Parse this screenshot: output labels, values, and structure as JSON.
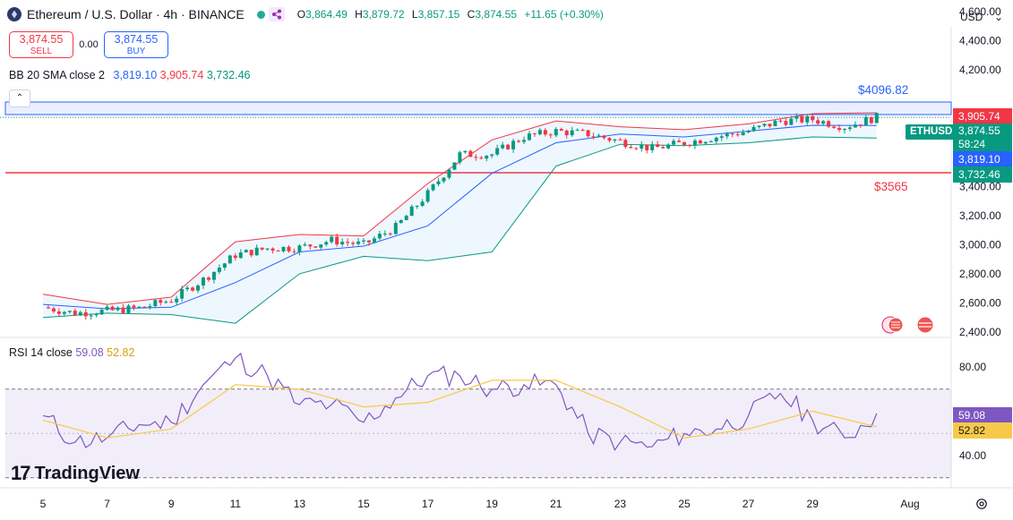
{
  "header": {
    "title": "Ethereum / U.S. Dollar · 4h · BINANCE",
    "ohlc": {
      "o_label": "O",
      "o": "3,864.49",
      "h_label": "H",
      "h": "3,879.72",
      "l_label": "L",
      "l": "3,857.15",
      "c_label": "C",
      "c": "3,874.55",
      "change": "+11.65 (+0.30%)"
    }
  },
  "trade": {
    "sell_price": "3,874.55",
    "sell_label": "SELL",
    "spread": "0.00",
    "buy_price": "3,874.55",
    "buy_label": "BUY"
  },
  "indicators": {
    "bb": {
      "name": "BB 20 SMA close 2",
      "basis": "3,819.10",
      "upper": "3,905.74",
      "lower": "3,732.46"
    },
    "rsi": {
      "name": "RSI 14 close",
      "rsi": "59.08",
      "ma": "52.82"
    }
  },
  "currency": {
    "label": "USD"
  },
  "price_labels": {
    "upper": "3,905.74",
    "last": "3,874.55",
    "countdown": "58:24",
    "basis": "3,819.10",
    "lower": "3,732.46",
    "symbol": "ETHUSD",
    "rsi": "59.08",
    "rsi_ma": "52.82"
  },
  "annotations": {
    "resistance": "$4096.82",
    "support": "$3565"
  },
  "colors": {
    "up": "#089981",
    "down": "#f23645",
    "basis": "#2962ff",
    "upper_band": "#f23645",
    "lower_band": "#089981",
    "rsi": "#7e57c2",
    "rsi_ma": "#f7c948",
    "resistance": "#2962ff",
    "support": "#f23645"
  },
  "logo": {
    "text": "TradingView"
  },
  "chart_data": {
    "type": "candlestick",
    "price_axis": {
      "ticks": [
        "4,600.00",
        "4,400.00",
        "4,200.00",
        "3,400.00",
        "3,200.00",
        "3,000.00",
        "2,800.00",
        "2,600.00",
        "2,400.00"
      ],
      "tick_values": [
        4600,
        4400,
        4200,
        3400,
        3200,
        3000,
        2800,
        2600,
        2400
      ]
    },
    "rsi_axis": {
      "ticks": [
        "80.00",
        "40.00"
      ],
      "tick_values": [
        80,
        40
      ],
      "band": [
        30,
        70
      ]
    },
    "x_axis": {
      "ticks": [
        "5",
        "7",
        "9",
        "11",
        "13",
        "15",
        "17",
        "19",
        "21",
        "23",
        "25",
        "27",
        "29",
        "Aug"
      ]
    },
    "levels": {
      "resistance": 4096.82,
      "support": 3565,
      "last": 3874.55
    },
    "price_path": [
      [
        "5",
        2570
      ],
      [
        "6",
        2530
      ],
      [
        "7",
        2545
      ],
      [
        "8",
        2565
      ],
      [
        "9",
        2620
      ],
      [
        "10",
        2760
      ],
      [
        "11",
        2930
      ],
      [
        "12",
        2975
      ],
      [
        "13",
        2980
      ],
      [
        "14",
        3030
      ],
      [
        "15",
        3000
      ],
      [
        "16",
        3120
      ],
      [
        "17",
        3350
      ],
      [
        "18",
        3620
      ],
      [
        "19",
        3620
      ],
      [
        "20",
        3740
      ],
      [
        "21",
        3780
      ],
      [
        "22",
        3760
      ],
      [
        "23",
        3710
      ],
      [
        "24",
        3660
      ],
      [
        "25",
        3700
      ],
      [
        "26",
        3740
      ],
      [
        "27",
        3780
      ],
      [
        "28",
        3850
      ],
      [
        "29",
        3860
      ],
      [
        "30",
        3810
      ],
      [
        "31",
        3875
      ]
    ],
    "bb_upper_path": [
      [
        "5",
        2660
      ],
      [
        "7",
        2590
      ],
      [
        "9",
        2640
      ],
      [
        "11",
        3020
      ],
      [
        "13",
        3070
      ],
      [
        "15",
        3060
      ],
      [
        "17",
        3420
      ],
      [
        "19",
        3720
      ],
      [
        "21",
        3850
      ],
      [
        "23",
        3810
      ],
      [
        "25",
        3790
      ],
      [
        "27",
        3830
      ],
      [
        "29",
        3900
      ],
      [
        "31",
        3906
      ]
    ],
    "bb_basis_path": [
      [
        "5",
        2590
      ],
      [
        "7",
        2560
      ],
      [
        "9",
        2570
      ],
      [
        "11",
        2740
      ],
      [
        "13",
        2950
      ],
      [
        "15",
        2990
      ],
      [
        "17",
        3130
      ],
      [
        "19",
        3490
      ],
      [
        "21",
        3700
      ],
      [
        "23",
        3760
      ],
      [
        "25",
        3740
      ],
      [
        "27",
        3780
      ],
      [
        "29",
        3820
      ],
      [
        "31",
        3819
      ]
    ],
    "bb_lower_path": [
      [
        "5",
        2500
      ],
      [
        "7",
        2530
      ],
      [
        "9",
        2520
      ],
      [
        "11",
        2460
      ],
      [
        "13",
        2800
      ],
      [
        "15",
        2920
      ],
      [
        "17",
        2890
      ],
      [
        "19",
        2950
      ],
      [
        "21",
        3540
      ],
      [
        "23",
        3690
      ],
      [
        "25",
        3680
      ],
      [
        "27",
        3700
      ],
      [
        "29",
        3740
      ],
      [
        "31",
        3732
      ]
    ],
    "rsi_path": [
      [
        "5",
        58
      ],
      [
        "6",
        46
      ],
      [
        "7",
        48
      ],
      [
        "8",
        54
      ],
      [
        "9",
        55
      ],
      [
        "10",
        72
      ],
      [
        "11",
        84
      ],
      [
        "12",
        76
      ],
      [
        "13",
        63
      ],
      [
        "14",
        63
      ],
      [
        "15",
        55
      ],
      [
        "16",
        66
      ],
      [
        "17",
        76
      ],
      [
        "18",
        76
      ],
      [
        "19",
        70
      ],
      [
        "20",
        72
      ],
      [
        "21",
        72
      ],
      [
        "22",
        50
      ],
      [
        "23",
        46
      ],
      [
        "24",
        44
      ],
      [
        "25",
        50
      ],
      [
        "26",
        52
      ],
      [
        "27",
        58
      ],
      [
        "28",
        68
      ],
      [
        "29",
        56
      ],
      [
        "30",
        48
      ],
      [
        "31",
        59
      ]
    ],
    "rsi_ma_path": [
      [
        "5",
        56
      ],
      [
        "7",
        48
      ],
      [
        "9",
        52
      ],
      [
        "11",
        72
      ],
      [
        "13",
        70
      ],
      [
        "15",
        62
      ],
      [
        "17",
        64
      ],
      [
        "19",
        74
      ],
      [
        "21",
        74
      ],
      [
        "23",
        62
      ],
      [
        "25",
        48
      ],
      [
        "27",
        52
      ],
      [
        "29",
        60
      ],
      [
        "31",
        53
      ]
    ]
  }
}
